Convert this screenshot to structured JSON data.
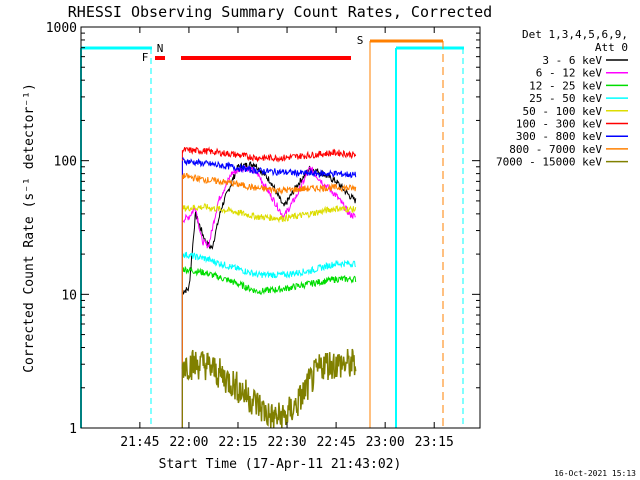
{
  "chart_data": {
    "type": "line",
    "title": "RHESSI Observing Summary Count Rates, Corrected",
    "xlabel": "Start Time (17-Apr-11 21:43:02)",
    "ylabel": "Corrected Count Rate (s⁻¹ detector⁻¹)",
    "yscale": "log",
    "ylim": [
      1,
      1000
    ],
    "xlim_minutes": [
      -18,
      104
    ],
    "x_ticks": [
      {
        "m": 0,
        "label": "21:45"
      },
      {
        "m": 15,
        "label": "22:00"
      },
      {
        "m": 30,
        "label": "22:15"
      },
      {
        "m": 45,
        "label": "22:30"
      },
      {
        "m": 60,
        "label": "22:45"
      },
      {
        "m": 75,
        "label": "23:00"
      },
      {
        "m": 90,
        "label": "23:15"
      }
    ],
    "y_ticks": [
      {
        "v": 1,
        "label": "1"
      },
      {
        "v": 10,
        "label": "10"
      },
      {
        "v": 100,
        "label": "100"
      },
      {
        "v": 1000,
        "label": "1000"
      }
    ],
    "legend_title": "Det 1,3,4,5,6,9,",
    "legend_subtitle": "Att 0",
    "legend_position": "right",
    "series": [
      {
        "name": "3 - 6 keV",
        "color": "#000000",
        "x": [
          13,
          15,
          17,
          20,
          22,
          25,
          30,
          35,
          40,
          44,
          48,
          52,
          56,
          60,
          64,
          66
        ],
        "y": [
          10.5,
          11,
          40,
          25,
          22,
          45,
          90,
          95,
          70,
          45,
          65,
          88,
          80,
          70,
          55,
          50
        ]
      },
      {
        "name": "6 - 12 keV",
        "color": "#ff00ff",
        "x": [
          13,
          15,
          17,
          19,
          21,
          24,
          28,
          32,
          36,
          40,
          44,
          48,
          52,
          56,
          60,
          64,
          66
        ],
        "y": [
          36,
          38,
          45,
          25,
          23,
          50,
          80,
          90,
          80,
          55,
          38,
          55,
          88,
          68,
          55,
          40,
          38
        ]
      },
      {
        "name": "12 - 25 keV",
        "color": "#00dd00",
        "x": [
          13,
          20,
          28,
          36,
          44,
          52,
          60,
          66
        ],
        "y": [
          15.5,
          14.5,
          12.5,
          10.5,
          11,
          12,
          13,
          13
        ]
      },
      {
        "name": "25 - 50 keV",
        "color": "#00ffff",
        "x": [
          13,
          20,
          28,
          36,
          44,
          52,
          60,
          66
        ],
        "y": [
          20,
          18.5,
          16,
          14,
          14,
          15,
          17,
          17
        ]
      },
      {
        "name": "50 - 100 keV",
        "color": "#dddd00",
        "x": [
          13,
          20,
          28,
          36,
          44,
          52,
          60,
          66
        ],
        "y": [
          44,
          45,
          42,
          38,
          37,
          40,
          44,
          43
        ]
      },
      {
        "name": "100 - 300 keV",
        "color": "#ff0000",
        "x": [
          13,
          20,
          28,
          36,
          44,
          52,
          60,
          66
        ],
        "y": [
          120,
          118,
          112,
          105,
          105,
          110,
          115,
          110
        ]
      },
      {
        "name": "300 - 800 keV",
        "color": "#0000ff",
        "x": [
          13,
          20,
          28,
          36,
          44,
          52,
          60,
          66
        ],
        "y": [
          100,
          95,
          90,
          84,
          82,
          80,
          80,
          78
        ]
      },
      {
        "name": "800 - 7000 keV",
        "color": "#ff8000",
        "x": [
          13,
          20,
          28,
          36,
          44,
          52,
          60,
          66
        ],
        "y": [
          77,
          72,
          68,
          62,
          60,
          62,
          63,
          62
        ]
      },
      {
        "name": "7000 - 15000 keV",
        "color": "#808000",
        "x": [
          13,
          20,
          28,
          36,
          40,
          44,
          48,
          52,
          56,
          60,
          64,
          66
        ],
        "y": [
          3,
          3,
          2.2,
          1.5,
          1.2,
          1.2,
          1.5,
          2.2,
          3,
          3,
          3,
          3
        ]
      }
    ],
    "annotations": [
      {
        "text": "N",
        "color": "#00ffff",
        "x": 16.3
      },
      {
        "text": "F",
        "color": "#ff0000",
        "x": 15.5
      },
      {
        "text": "S",
        "color": "#ff8000",
        "x": 70
      }
    ],
    "timestamp": "16-Oct-2021 15:13"
  }
}
